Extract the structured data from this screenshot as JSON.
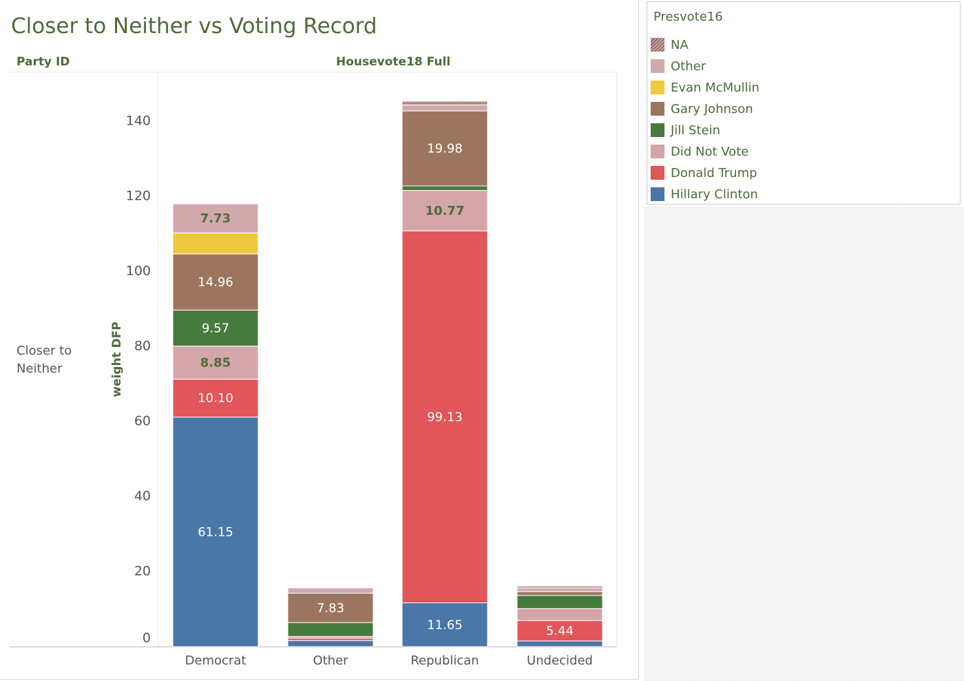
{
  "title": "Closer to Neither vs Voting Record",
  "headers": {
    "row_dim": "Party ID",
    "col_dim": "Housevote18 Full"
  },
  "row_label": "Closer to Neither",
  "legend": {
    "title": "Presvote16",
    "items": [
      {
        "name": "NA",
        "color": "#a87f78",
        "pattern": "hatched"
      },
      {
        "name": "Other",
        "color": "#d2a9ab"
      },
      {
        "name": "Evan McMullin",
        "color": "#efc93d"
      },
      {
        "name": "Gary Johnson",
        "color": "#9c7560"
      },
      {
        "name": "Jill Stein",
        "color": "#477a3d"
      },
      {
        "name": "Did Not Vote",
        "color": "#d4a6aa"
      },
      {
        "name": "Donald Trump",
        "color": "#e15658"
      },
      {
        "name": "Hillary Clinton",
        "color": "#4a76a8"
      }
    ]
  },
  "chart_data": {
    "type": "bar",
    "stacked": true,
    "title": "Closer to Neither vs Voting Record",
    "xlabel": "Housevote18 Full",
    "ylabel": "weight DFP",
    "ylim": [
      0,
      147
    ],
    "yticks": [
      0,
      20,
      40,
      60,
      80,
      100,
      120,
      140
    ],
    "grid": false,
    "legend_position": "right",
    "categories": [
      "Democrat",
      "Other",
      "Republican",
      "Undecided"
    ],
    "series": [
      {
        "name": "Hillary Clinton",
        "values": [
          61.15,
          1.6,
          11.65,
          1.5
        ],
        "labels": [
          "61.15",
          "",
          "11.65",
          ""
        ]
      },
      {
        "name": "Donald Trump",
        "values": [
          10.1,
          0.6,
          99.13,
          5.44
        ],
        "labels": [
          "10.10",
          "",
          "99.13",
          "5.44"
        ]
      },
      {
        "name": "Did Not Vote",
        "values": [
          8.85,
          0.5,
          10.77,
          3.2
        ],
        "labels": [
          "8.85",
          "",
          "10.77",
          ""
        ]
      },
      {
        "name": "Jill Stein",
        "values": [
          9.57,
          3.7,
          1.2,
          3.5
        ],
        "labels": [
          "9.57",
          "",
          "",
          ""
        ]
      },
      {
        "name": "Gary Johnson",
        "values": [
          14.96,
          7.83,
          19.98,
          1.0
        ],
        "labels": [
          "14.96",
          "7.83",
          "19.98",
          ""
        ]
      },
      {
        "name": "Evan McMullin",
        "values": [
          5.6,
          0,
          0,
          0
        ],
        "labels": [
          "",
          "",
          "",
          ""
        ]
      },
      {
        "name": "Other",
        "values": [
          7.73,
          1.4,
          1.6,
          1.0
        ],
        "labels": [
          "7.73",
          "",
          "",
          ""
        ]
      },
      {
        "name": "NA",
        "values": [
          0,
          0,
          1.0,
          0.5
        ],
        "labels": [
          "",
          "",
          "",
          ""
        ]
      }
    ]
  }
}
